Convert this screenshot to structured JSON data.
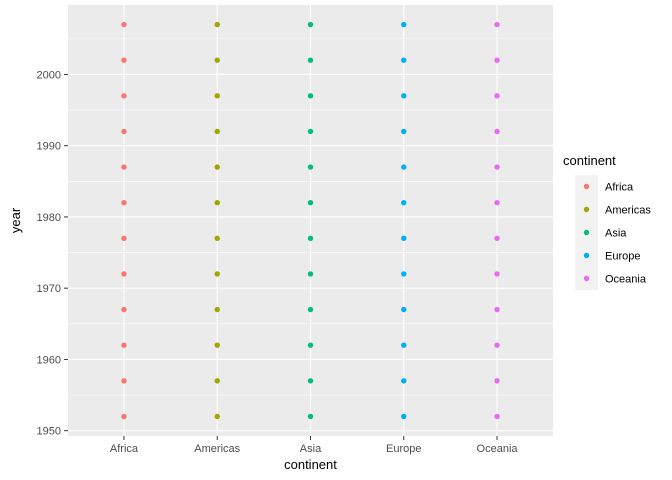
{
  "chart_data": {
    "type": "scatter",
    "xlabel": "continent",
    "ylabel": "year",
    "categories": [
      "Africa",
      "Americas",
      "Asia",
      "Europe",
      "Oceania"
    ],
    "y_values": [
      1952,
      1957,
      1962,
      1967,
      1972,
      1977,
      1982,
      1987,
      1992,
      1997,
      2002,
      2007
    ],
    "ylim": [
      1949.25,
      2009.75
    ],
    "y_ticks": [
      1950,
      1960,
      1970,
      1980,
      1990,
      2000
    ],
    "grid": true,
    "legend": {
      "title": "continent",
      "placement": "right",
      "entries": [
        "Africa",
        "Americas",
        "Asia",
        "Europe",
        "Oceania"
      ]
    },
    "series": [
      {
        "name": "Africa",
        "color": "#F8766D",
        "x": "Africa",
        "y": [
          1952,
          1957,
          1962,
          1967,
          1972,
          1977,
          1982,
          1987,
          1992,
          1997,
          2002,
          2007
        ]
      },
      {
        "name": "Americas",
        "color": "#A3A500",
        "x": "Americas",
        "y": [
          1952,
          1957,
          1962,
          1967,
          1972,
          1977,
          1982,
          1987,
          1992,
          1997,
          2002,
          2007
        ]
      },
      {
        "name": "Asia",
        "color": "#00BF7D",
        "x": "Asia",
        "y": [
          1952,
          1957,
          1962,
          1967,
          1972,
          1977,
          1982,
          1987,
          1992,
          1997,
          2002,
          2007
        ]
      },
      {
        "name": "Europe",
        "color": "#00B0F6",
        "x": "Europe",
        "y": [
          1952,
          1957,
          1962,
          1967,
          1972,
          1977,
          1982,
          1987,
          1992,
          1997,
          2002,
          2007
        ]
      },
      {
        "name": "Oceania",
        "color": "#E76BF3",
        "x": "Oceania",
        "y": [
          1952,
          1957,
          1962,
          1967,
          1972,
          1977,
          1982,
          1987,
          1992,
          1997,
          2002,
          2007
        ]
      }
    ],
    "panel_color": "#EBEBEB",
    "grid_color": "#FFFFFF"
  }
}
